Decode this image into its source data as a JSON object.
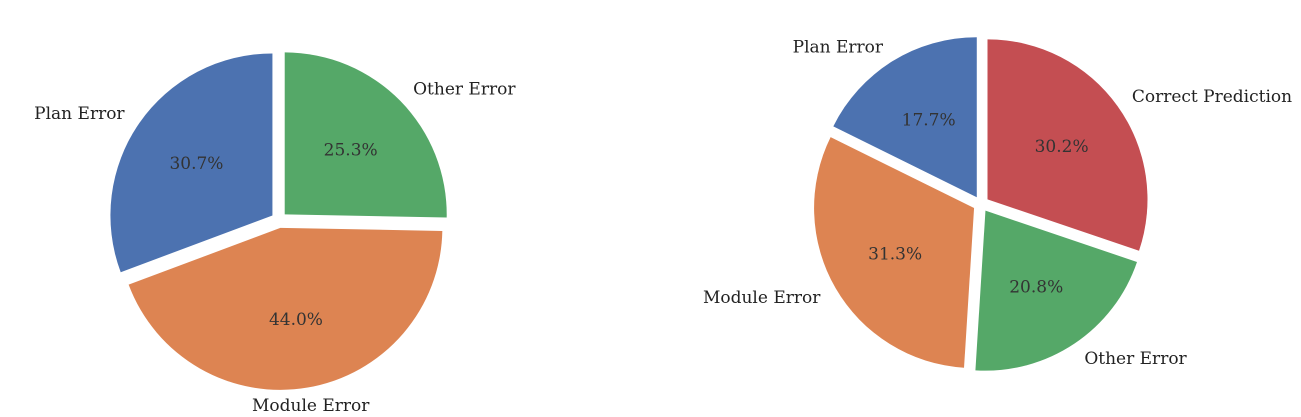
{
  "chart_data": [
    {
      "type": "pie",
      "title": "",
      "slices": [
        {
          "label": "Plan Error",
          "value": 30.7,
          "pct_label": "30.7%",
          "color": "#4c72b0",
          "start_angle_deg": 0,
          "explode": true
        },
        {
          "label": "Module Error",
          "value": 44.0,
          "pct_label": "44.0%",
          "color": "#dd8452",
          "explode": true
        },
        {
          "label": "Other Error",
          "value": 25.3,
          "pct_label": "25.3%",
          "color": "#55a868",
          "explode": true
        }
      ],
      "direction": "counterclockwise",
      "start_at": "top",
      "legend": "none"
    },
    {
      "type": "pie",
      "title": "",
      "slices": [
        {
          "label": "Plan Error",
          "value": 17.7,
          "pct_label": "17.7%",
          "color": "#4c72b0",
          "explode": true
        },
        {
          "label": "Module Error",
          "value": 31.3,
          "pct_label": "31.3%",
          "color": "#dd8452",
          "explode": true
        },
        {
          "label": "Other Error",
          "value": 20.8,
          "pct_label": "20.8%",
          "color": "#55a868",
          "explode": true
        },
        {
          "label": "Correct Prediction",
          "value": 30.2,
          "pct_label": "30.2%",
          "color": "#c44e52",
          "explode": true
        }
      ],
      "direction": "counterclockwise",
      "start_at": "top",
      "legend": "none"
    }
  ]
}
